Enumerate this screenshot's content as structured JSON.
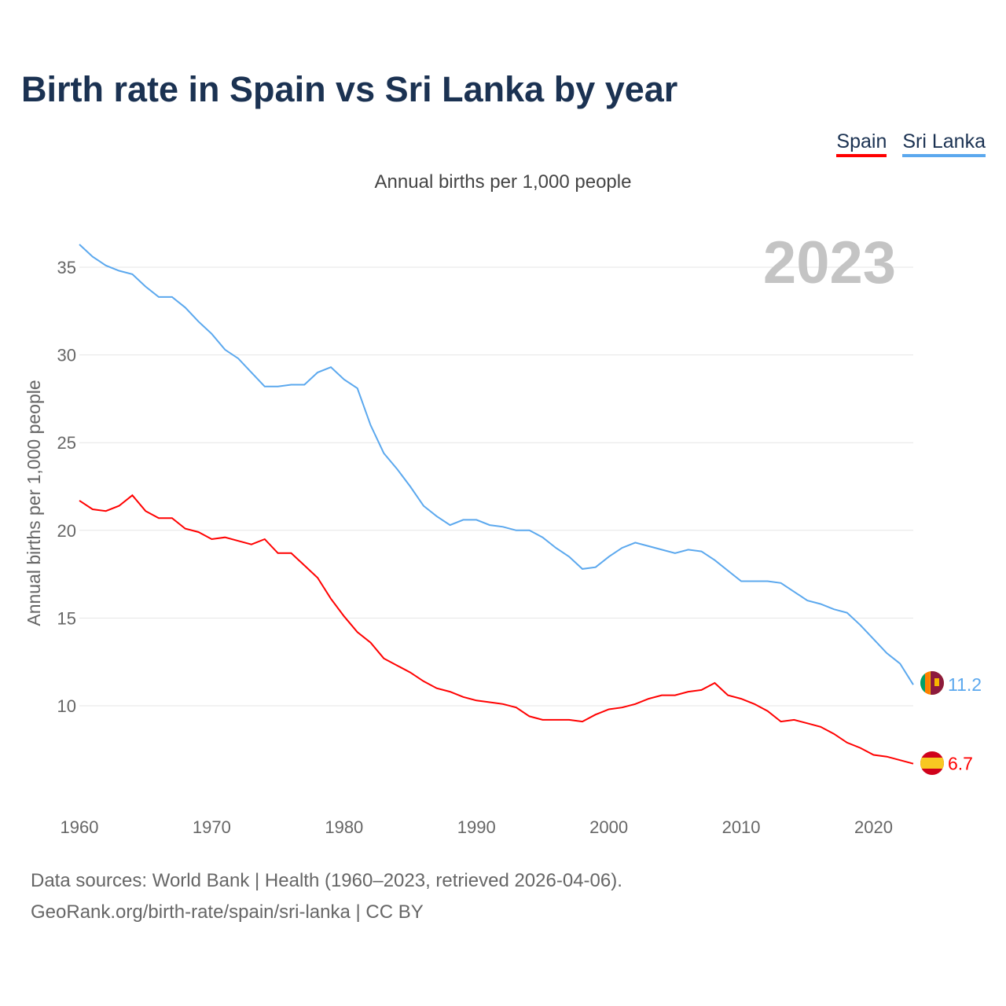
{
  "title": "Birth rate in Spain vs Sri Lanka by year",
  "legend": [
    {
      "label": "Spain",
      "color": "#ff0000"
    },
    {
      "label": "Sri Lanka",
      "color": "#5ba8ee"
    }
  ],
  "subtitle": "Annual births per 1,000 people",
  "year_watermark": "2023",
  "footer": {
    "line1": "Data sources: World Bank | Health (1960–2023, retrieved 2026-04-06).",
    "line2": "GeoRank.org/birth-rate/spain/sri-lanka | CC BY"
  },
  "chart_data": {
    "type": "line",
    "title": "Birth rate in Spain vs Sri Lanka by year",
    "xlabel": "",
    "ylabel": "Annual births per 1,000 people",
    "xlim": [
      1960,
      2023
    ],
    "ylim": [
      5,
      36.8
    ],
    "x_ticks": [
      1960,
      1970,
      1980,
      1990,
      2000,
      2010,
      2020
    ],
    "y_ticks": [
      10,
      15,
      20,
      25,
      30,
      35
    ],
    "grid": true,
    "legend_position": "top-right",
    "x_start": 1960,
    "series": [
      {
        "name": "Spain",
        "color": "#ff0000",
        "end_label": "6.7",
        "values": [
          21.7,
          21.2,
          21.1,
          21.4,
          22.0,
          21.1,
          20.7,
          20.7,
          20.1,
          19.9,
          19.5,
          19.6,
          19.4,
          19.2,
          19.5,
          18.7,
          18.7,
          18.0,
          17.3,
          16.1,
          15.1,
          14.2,
          13.6,
          12.7,
          12.3,
          11.9,
          11.4,
          11.0,
          10.8,
          10.5,
          10.3,
          10.2,
          10.1,
          9.9,
          9.4,
          9.2,
          9.2,
          9.2,
          9.1,
          9.5,
          9.8,
          9.9,
          10.1,
          10.4,
          10.6,
          10.6,
          10.8,
          10.9,
          11.3,
          10.6,
          10.4,
          10.1,
          9.7,
          9.1,
          9.2,
          9.0,
          8.8,
          8.4,
          7.9,
          7.6,
          7.2,
          7.1,
          6.9,
          6.7
        ]
      },
      {
        "name": "Sri Lanka",
        "color": "#5ba8ee",
        "end_label": "11.2",
        "values": [
          36.3,
          35.6,
          35.1,
          34.8,
          34.6,
          33.9,
          33.3,
          33.3,
          32.7,
          31.9,
          31.2,
          30.3,
          29.8,
          29.0,
          28.2,
          28.2,
          28.3,
          28.3,
          29.0,
          29.3,
          28.6,
          28.1,
          26.0,
          24.4,
          23.5,
          22.5,
          21.4,
          20.8,
          20.3,
          20.6,
          20.6,
          20.3,
          20.2,
          20.0,
          20.0,
          19.6,
          19.0,
          18.5,
          17.8,
          17.9,
          18.5,
          19.0,
          19.3,
          19.1,
          18.9,
          18.7,
          18.9,
          18.8,
          18.3,
          17.7,
          17.1,
          17.1,
          17.1,
          17.0,
          16.5,
          16.0,
          15.8,
          15.5,
          15.3,
          14.6,
          13.8,
          13.0,
          12.4,
          11.2
        ]
      }
    ]
  }
}
